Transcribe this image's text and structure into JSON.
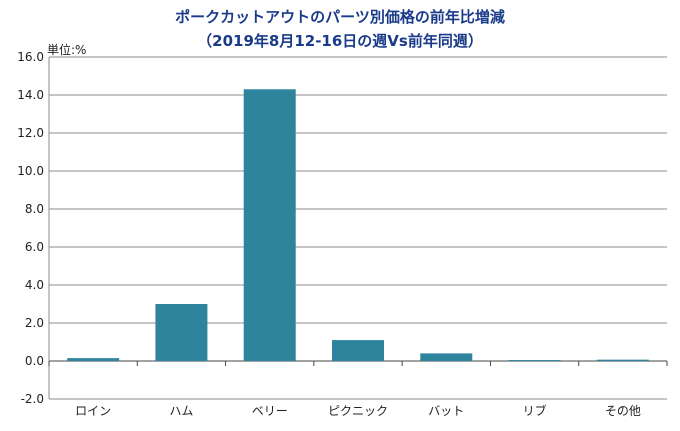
{
  "chart_data": {
    "type": "bar",
    "title": "ポークカットアウトのパーツ別価格の前年比増減",
    "subtitle": "（2019年8月12-16日の週Vs前年同週）",
    "unit_label": "単位:%",
    "categories": [
      "ロイン",
      "ハム",
      "ベリー",
      "ピクニック",
      "バット",
      "リブ",
      "その他"
    ],
    "values": [
      0.15,
      3.0,
      14.3,
      1.1,
      0.4,
      0.05,
      0.07
    ],
    "ylim": [
      -2.0,
      16.0
    ],
    "yticks": [
      "16.0",
      "14.0",
      "12.0",
      "10.0",
      "8.0",
      "6.0",
      "4.0",
      "2.0",
      "0.0",
      "-2.0"
    ],
    "grid": true,
    "bar_color": "#2e849c",
    "title_color": "#1a3a8a"
  }
}
